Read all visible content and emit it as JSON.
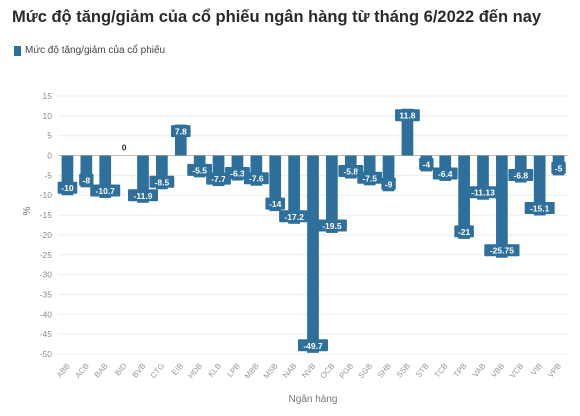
{
  "chart_data": {
    "type": "bar",
    "title": "Mức độ tăng/giảm của cổ phiếu ngân hàng từ tháng 6/2022 đến nay",
    "xlabel": "Ngân hàng",
    "ylabel": "%",
    "ylim": [
      -50,
      15
    ],
    "yticks": [
      15,
      10,
      5,
      0,
      -5,
      -10,
      -15,
      -20,
      -25,
      -30,
      -35,
      -40,
      -45,
      -50
    ],
    "legend_position": "top-left",
    "grid": true,
    "categories": [
      "ABB",
      "ACB",
      "BAB",
      "BID",
      "BVB",
      "CTG",
      "EIB",
      "HDB",
      "KLB",
      "LPB",
      "MBB",
      "MSB",
      "NAB",
      "NVB",
      "OCB",
      "PGB",
      "SGB",
      "SHB",
      "SSB",
      "STB",
      "TCB",
      "TPB",
      "VAB",
      "VBB",
      "VCB",
      "VIB",
      "VPB"
    ],
    "series": [
      {
        "name": "Mức độ tăng/giảm của cổ phiếu",
        "color": "#2f6f9b",
        "values": [
          -10,
          -8,
          -10.7,
          0,
          -11.9,
          -8.5,
          7.8,
          -5.5,
          -7.7,
          -6.3,
          -7.6,
          -14,
          -17.2,
          -49.7,
          -19.5,
          -5.8,
          -7.5,
          -9,
          11.8,
          -4,
          -6.4,
          -21,
          -11.13,
          -25.75,
          -6.8,
          -15.1,
          -5
        ]
      }
    ]
  }
}
